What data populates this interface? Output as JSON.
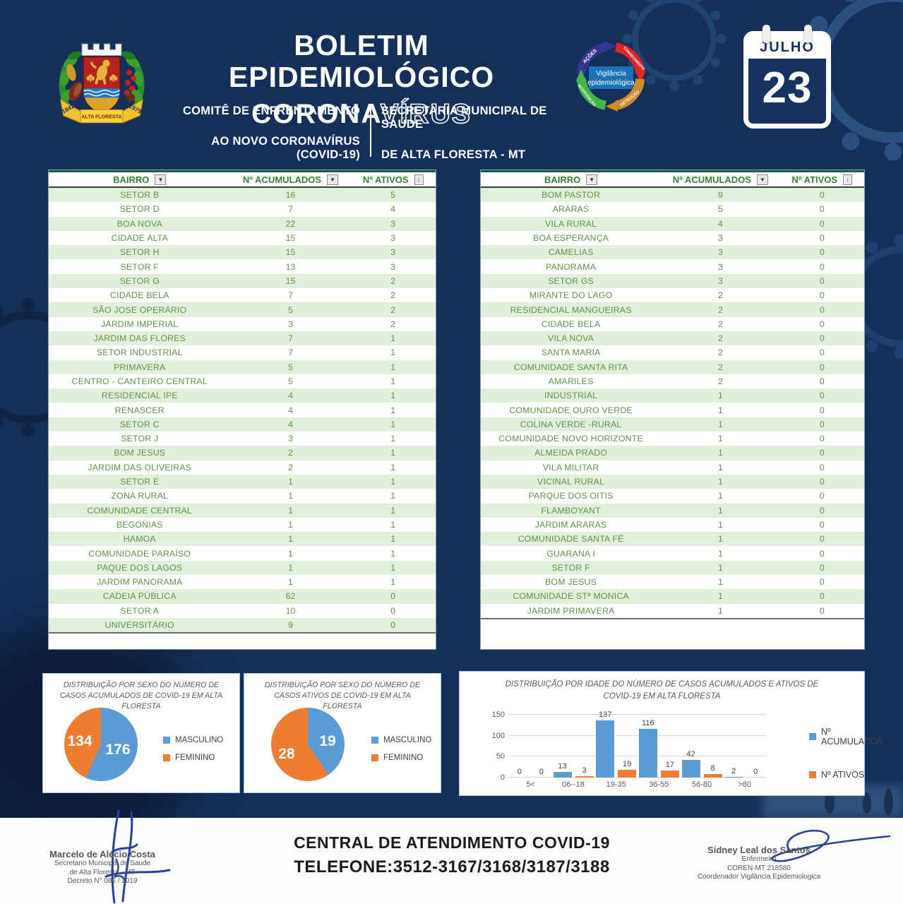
{
  "header": {
    "title_line1": "BOLETIM EPIDEMIOLÓGICO",
    "title_corona": "CORONA",
    "title_virus": "VÍRUS",
    "committee_line1": "COMITÊ DE ENFRENTAMENTO",
    "committee_line2": "AO NOVO CORONAVÍRUS (COVID-19)",
    "secretariat_line1": "SECRETARIA MUNICIPAL DE SAÚDE",
    "secretariat_line2": "DE ALTA FLORESTA - MT",
    "crest": {
      "year_left": "1842",
      "year_right": "1979",
      "name": "ALTA FLORESTA"
    },
    "cycle": {
      "center_line1": "Vigilância",
      "center_line2": "epidemiológica",
      "label_top": "AÇÕES",
      "label_right": "CONHECIMENTO",
      "label_bottom": "DETECÇÃO",
      "label_left": "INTERVENÇÃO"
    },
    "calendar": {
      "month": "JULHO",
      "day": "23"
    }
  },
  "icons": {
    "filter": "▼",
    "sort": "↓"
  },
  "tables": {
    "columns": [
      "BAIRRO",
      "Nº ACUMULADOS",
      "Nº ATIVOS"
    ],
    "left": {
      "rows": [
        [
          "SETOR B",
          16,
          5
        ],
        [
          "SETOR D",
          7,
          4
        ],
        [
          "BOA NOVA",
          22,
          3
        ],
        [
          "CIDADE ALTA",
          15,
          3
        ],
        [
          "SETOR H",
          15,
          3
        ],
        [
          "SETOR F",
          13,
          3
        ],
        [
          "SETOR G",
          15,
          2
        ],
        [
          "CIDADE BELA",
          7,
          2
        ],
        [
          "SÃO JOSE OPERÁRIO",
          5,
          2
        ],
        [
          "JARDIM IMPERIAL",
          3,
          2
        ],
        [
          "JARDIM DAS FLORES",
          7,
          1
        ],
        [
          "SETOR INDUSTRIAL",
          7,
          1
        ],
        [
          "PRIMAVERA",
          5,
          1
        ],
        [
          "CENTRO - CANTEIRO CENTRAL",
          5,
          1
        ],
        [
          "RESIDENCIAL IPE",
          4,
          1
        ],
        [
          "RENASCER",
          4,
          1
        ],
        [
          "SETOR C",
          4,
          1
        ],
        [
          "SETOR J",
          3,
          1
        ],
        [
          "BOM JESUS",
          2,
          1
        ],
        [
          "JARDIM DAS OLIVEIRAS",
          2,
          1
        ],
        [
          "SETOR E",
          1,
          1
        ],
        [
          "ZONA RURAL",
          1,
          1
        ],
        [
          "COMUNIDADE CENTRAL",
          1,
          1
        ],
        [
          "BEGONIAS",
          1,
          1
        ],
        [
          "HAMOA",
          1,
          1
        ],
        [
          "COMUNIDADE PARAÍSO",
          1,
          1
        ],
        [
          "PAQUE DOS LAGOS",
          1,
          1
        ],
        [
          "JARDIM PANORAMA",
          1,
          1
        ],
        [
          "CADEIA PÚBLICA",
          62,
          0
        ],
        [
          "SETOR A",
          10,
          0
        ],
        [
          "UNIVERSITÁRIO",
          9,
          0
        ]
      ]
    },
    "right": {
      "rows": [
        [
          "BOM PASTOR",
          9,
          0
        ],
        [
          "ARARAS",
          5,
          0
        ],
        [
          "VILA RURAL",
          4,
          0
        ],
        [
          "BOA ESPERANÇA",
          3,
          0
        ],
        [
          "CAMELIAS",
          3,
          0
        ],
        [
          "PANORAMA",
          3,
          0
        ],
        [
          "SETOR GS",
          3,
          0
        ],
        [
          "MIRANTE DO LAGO",
          2,
          0
        ],
        [
          "RESIDENCIAL MANGUEIRAS",
          2,
          0
        ],
        [
          "CIDADE BELA",
          2,
          0
        ],
        [
          "VILA NOVA",
          2,
          0
        ],
        [
          "SANTA MARIA",
          2,
          0
        ],
        [
          "COMUNIDADE SANTA RITA",
          2,
          0
        ],
        [
          "AMARILES",
          2,
          0
        ],
        [
          "INDUSTRIAL",
          1,
          0
        ],
        [
          "COMUNIDADE OURO VERDE",
          1,
          0
        ],
        [
          "COLINA VERDE -RURAL",
          1,
          0
        ],
        [
          "COMUNIDADE NOVO HORIZONTE",
          1,
          0
        ],
        [
          "ALMEIDA PRADO",
          1,
          0
        ],
        [
          "VILA MILITAR",
          1,
          0
        ],
        [
          "VICINAL RURAL",
          1,
          0
        ],
        [
          "PARQUE DOS OITIS",
          1,
          0
        ],
        [
          "FLAMBOYANT",
          1,
          0
        ],
        [
          "JARDIM ARARAS",
          1,
          0
        ],
        [
          "COMUNIDADE SANTA FÉ",
          1,
          0
        ],
        [
          "GUARANA I",
          1,
          0
        ],
        [
          "SETOR F",
          1,
          0
        ],
        [
          "BOM JESUS",
          1,
          0
        ],
        [
          "COMUNIDADE STª MONICA",
          1,
          0
        ],
        [
          "JARDIM PRIMAVERA",
          1,
          0
        ]
      ]
    }
  },
  "chart_data": [
    {
      "type": "pie",
      "title": "DISTRIBUIÇÃO POR SEXO DO NÚMERO DE CASOS ACUMULADOS DE COVID-19 EM ALTA FLORESTA",
      "labels": [
        "MASCULINO",
        "FEMININO"
      ],
      "values": [
        176,
        134
      ],
      "colors": [
        "#5b9bd5",
        "#ed7d31"
      ],
      "legend_position": "right"
    },
    {
      "type": "pie",
      "title": "DISTRIBUIÇÃO POR SEXO DO NÚMERO DE CASOS ATIVOS DE COVID-19 EM ALTA FLORESTA",
      "labels": [
        "MASCULINO",
        "FEMININO"
      ],
      "values": [
        19,
        28
      ],
      "colors": [
        "#5b9bd5",
        "#ed7d31"
      ],
      "legend_position": "right"
    },
    {
      "type": "bar",
      "title": "DISTRIBUIÇÃO POR IDADE DO NÚMERO DE CASOS ACUMULADOS E ATIVOS DE COVID-19 EM ALTA FLORESTA",
      "categories": [
        "5<",
        "06--18",
        "19-35",
        "36-55",
        "56-80",
        ">80"
      ],
      "series": [
        {
          "name": "Nº ACUMULADOS",
          "color": "#5b9bd5",
          "values": [
            0,
            13,
            137,
            116,
            42,
            2
          ]
        },
        {
          "name": "Nº ATIVOS",
          "color": "#ed7d31",
          "values": [
            0,
            3,
            19,
            17,
            8,
            0
          ]
        }
      ],
      "ylim": [
        0,
        150
      ],
      "yticks": [
        0,
        50,
        100,
        150
      ],
      "grid": true,
      "legend_position": "right"
    }
  ],
  "footer": {
    "left": {
      "name": "Marcelo de Alécio Costa",
      "line2": "Secretario Municipal de Saude",
      "line3": "de Alta Floresta - MT",
      "line4": "Decreto N° 086 / 2019"
    },
    "center": {
      "line1": "CENTRAL  DE ATENDIMENTO COVID-19",
      "line2": "TELEFONE:3512-3167/3168/3187/3188"
    },
    "right": {
      "name": "Sidney Leal dos Santos",
      "line2": "Enfermeiro",
      "line3": "COREN-MT 218580",
      "line4": "Coordenador Vigilância Epidemiologica"
    }
  },
  "colors": {
    "background_navy": "#14305a",
    "table_text_green": "#5f9148",
    "table_header_green": "#377d37",
    "row_alt_green": "#e2efda",
    "chart_blue": "#5b9bd5",
    "chart_orange": "#ed7d31"
  }
}
